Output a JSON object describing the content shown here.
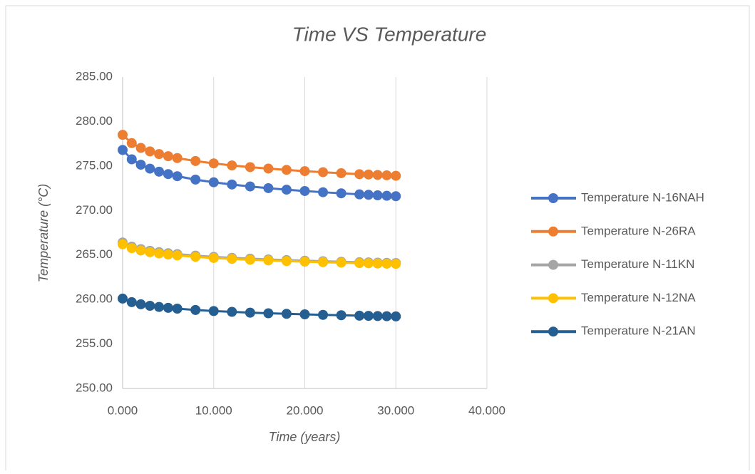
{
  "chart_data": {
    "type": "line",
    "title": "Time VS Temperature",
    "x_label": "Time (years)",
    "y_label": "Temperature (°C)",
    "x": [
      0,
      1,
      2,
      3,
      4,
      5,
      6,
      8,
      10,
      12,
      14,
      16,
      18,
      20,
      22,
      24,
      26,
      27,
      28,
      29,
      30
    ],
    "series": [
      {
        "name": "Temperature N-16NAH",
        "color": "#4472c4",
        "values": [
          276.8,
          275.75,
          275.14,
          274.7,
          274.36,
          274.09,
          273.85,
          273.47,
          273.17,
          272.92,
          272.7,
          272.51,
          272.34,
          272.19,
          272.05,
          271.93,
          271.81,
          271.76,
          271.7,
          271.65,
          271.6
        ]
      },
      {
        "name": "Temperature N-26RA",
        "color": "#ed7d31",
        "values": [
          278.5,
          277.57,
          277.03,
          276.64,
          276.34,
          276.1,
          275.89,
          275.56,
          275.29,
          275.06,
          274.87,
          274.71,
          274.56,
          274.42,
          274.3,
          274.19,
          274.08,
          274.04,
          273.99,
          273.95,
          273.9
        ]
      },
      {
        "name": "Temperature N-11KN",
        "color": "#a5a5a5",
        "values": [
          266.4,
          265.94,
          265.66,
          265.47,
          265.32,
          265.2,
          265.1,
          264.93,
          264.79,
          264.68,
          264.59,
          264.5,
          264.43,
          264.36,
          264.3,
          264.24,
          264.19,
          264.17,
          264.14,
          264.12,
          264.1
        ]
      },
      {
        "name": "Temperature N-12NA",
        "color": "#ffc000",
        "values": [
          266.2,
          265.76,
          265.5,
          265.31,
          265.17,
          265.05,
          264.95,
          264.79,
          264.66,
          264.56,
          264.46,
          264.39,
          264.31,
          264.25,
          264.19,
          264.14,
          264.09,
          264.07,
          264.04,
          264.02,
          264.0
        ]
      },
      {
        "name": "Temperature N-21AN",
        "color": "#255e91",
        "values": [
          260.1,
          259.7,
          259.46,
          259.29,
          259.16,
          259.06,
          258.97,
          258.82,
          258.7,
          258.61,
          258.52,
          258.45,
          258.39,
          258.33,
          258.27,
          258.23,
          258.18,
          258.16,
          258.14,
          258.12,
          258.1
        ]
      }
    ],
    "xlim": [
      0,
      40
    ],
    "xticks": [
      {
        "value": 0,
        "label": "0.000"
      },
      {
        "value": 10,
        "label": "10.000"
      },
      {
        "value": 20,
        "label": "20.000"
      },
      {
        "value": 30,
        "label": "30.000"
      },
      {
        "value": 40,
        "label": "40.000"
      }
    ],
    "ylim": [
      250,
      285
    ],
    "yticks": [
      {
        "value": 250,
        "label": "250.00"
      },
      {
        "value": 255,
        "label": "255.00"
      },
      {
        "value": 260,
        "label": "260.00"
      },
      {
        "value": 265,
        "label": "265.00"
      },
      {
        "value": 270,
        "label": "270.00"
      },
      {
        "value": 275,
        "label": "275.00"
      },
      {
        "value": 280,
        "label": "280.00"
      },
      {
        "value": 285,
        "label": "285.00"
      }
    ],
    "grid": "x",
    "legend": "right"
  }
}
